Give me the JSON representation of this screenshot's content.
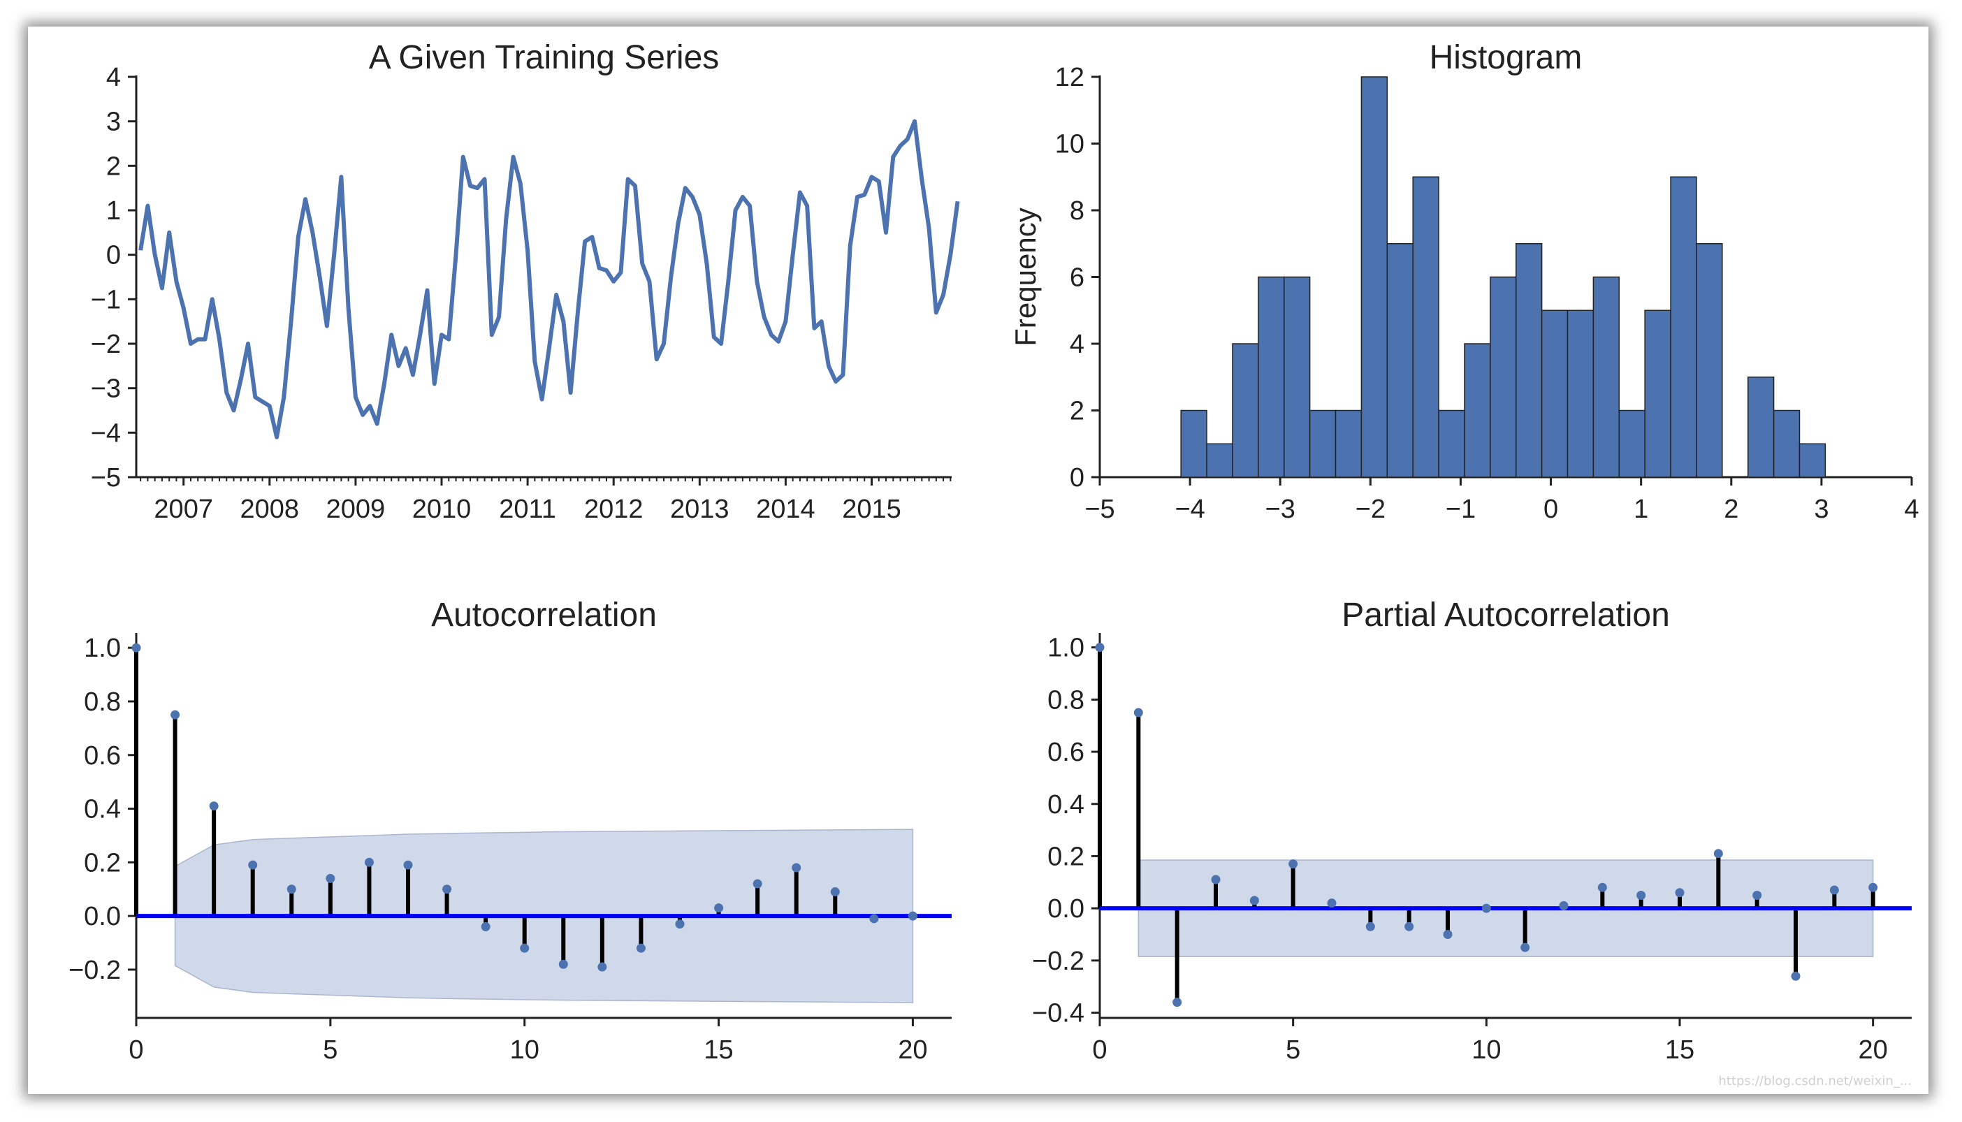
{
  "watermark": "https://blog.csdn.net/weixin_...",
  "chart_data": [
    {
      "type": "line",
      "title": "A Given Training Series",
      "xlabel": "",
      "ylabel": "",
      "xlim": [
        2006.45,
        2015.93
      ],
      "ylim": [
        -5,
        4
      ],
      "yticks": [
        4,
        3,
        2,
        1,
        0,
        -1,
        -2,
        -3,
        -4,
        -5
      ],
      "yticklabels": [
        "4",
        "3",
        "2",
        "1",
        "0",
        "−1",
        "−2",
        "−3",
        "−4",
        "−5"
      ],
      "xticks": [
        2007,
        2008,
        2009,
        2010,
        2011,
        2012,
        2013,
        2014,
        2015
      ],
      "xticklabels": [
        "2007",
        "2008",
        "2009",
        "2010",
        "2011",
        "2012",
        "2013",
        "2014",
        "2015"
      ],
      "color": "#4c72b0",
      "start": 2006.5,
      "step": 0.08333,
      "values": [
        0.1,
        1.1,
        0.0,
        -0.75,
        0.5,
        -0.6,
        -1.2,
        -2.0,
        -1.9,
        -1.9,
        -1.0,
        -1.9,
        -3.1,
        -3.5,
        -2.8,
        -2.0,
        -3.2,
        -3.3,
        -3.4,
        -4.1,
        -3.2,
        -1.5,
        0.4,
        1.25,
        0.5,
        -0.5,
        -1.6,
        0.0,
        1.75,
        -1.2,
        -3.2,
        -3.6,
        -3.4,
        -3.8,
        -2.9,
        -1.8,
        -2.5,
        -2.1,
        -2.7,
        -1.8,
        -0.8,
        -2.9,
        -1.8,
        -1.9,
        0.0,
        2.2,
        1.55,
        1.5,
        1.7,
        -1.8,
        -1.4,
        0.8,
        2.2,
        1.6,
        0.1,
        -2.4,
        -3.25,
        -2.1,
        -0.9,
        -1.5,
        -3.1,
        -1.3,
        0.3,
        0.4,
        -0.3,
        -0.35,
        -0.6,
        -0.4,
        1.7,
        1.55,
        -0.2,
        -0.6,
        -2.35,
        -2.0,
        -0.5,
        0.7,
        1.5,
        1.3,
        0.9,
        -0.2,
        -1.85,
        -2.0,
        -0.6,
        1.0,
        1.3,
        1.1,
        -0.6,
        -1.4,
        -1.8,
        -1.95,
        -1.5,
        0.0,
        1.4,
        1.1,
        -1.65,
        -1.5,
        -2.5,
        -2.85,
        -2.7,
        0.2,
        1.3,
        1.35,
        1.75,
        1.65,
        0.5,
        2.2,
        2.45,
        2.6,
        3.0,
        1.7,
        0.6,
        -1.3,
        -0.9,
        0.0,
        1.2
      ]
    },
    {
      "type": "bar",
      "title": "Histogram",
      "xlabel": "",
      "ylabel": "Frequency",
      "xlim": [
        -5,
        4
      ],
      "ylim": [
        0,
        12
      ],
      "yticks": [
        0,
        2,
        4,
        6,
        8,
        10,
        12
      ],
      "yticklabels": [
        "0",
        "2",
        "4",
        "6",
        "8",
        "10",
        "12"
      ],
      "xticks": [
        -5,
        -4,
        -3,
        -2,
        -1,
        0,
        1,
        2,
        3,
        4
      ],
      "xticklabels": [
        "−5",
        "−4",
        "−3",
        "−2",
        "−1",
        "0",
        "1",
        "2",
        "3",
        "4"
      ],
      "color": "#4c72b0",
      "bin_start": -4.1,
      "bin_width": 0.2857,
      "values": [
        2,
        1,
        4,
        6,
        6,
        2,
        2,
        12,
        7,
        9,
        2,
        4,
        6,
        7,
        5,
        5,
        6,
        2,
        5,
        9,
        7,
        0,
        3,
        2,
        1
      ]
    },
    {
      "type": "stem",
      "title": "Autocorrelation",
      "xlabel": "",
      "ylabel": "",
      "xlim": [
        0,
        21
      ],
      "ylim": [
        -0.38,
        1.05
      ],
      "yticks": [
        1.0,
        0.8,
        0.6,
        0.4,
        0.2,
        0.0,
        -0.2
      ],
      "yticklabels": [
        "1.0",
        "0.8",
        "0.6",
        "0.4",
        "0.2",
        "0.0",
        "−0.2"
      ],
      "xticks": [
        0,
        5,
        10,
        15,
        20
      ],
      "xticklabels": [
        "0",
        "5",
        "10",
        "15",
        "20"
      ],
      "lags": [
        0,
        1,
        2,
        3,
        4,
        5,
        6,
        7,
        8,
        9,
        10,
        11,
        12,
        13,
        14,
        15,
        16,
        17,
        18,
        19,
        20
      ],
      "values": [
        1.0,
        0.75,
        0.41,
        0.19,
        0.1,
        0.14,
        0.2,
        0.19,
        0.1,
        -0.04,
        -0.12,
        -0.18,
        -0.19,
        -0.12,
        -0.03,
        0.03,
        0.12,
        0.18,
        0.09,
        -0.01,
        0.0
      ],
      "conf_band": [
        0.0,
        0.185,
        0.265,
        0.285,
        0.29,
        0.295,
        0.3,
        0.305,
        0.308,
        0.31,
        0.312,
        0.314,
        0.315,
        0.316,
        0.317,
        0.318,
        0.319,
        0.32,
        0.321,
        0.322,
        0.323
      ],
      "band_color": "#d0d9ea",
      "stem_color": "#000000",
      "marker_color": "#4c72b0",
      "zero_line_color": "#0000ff"
    },
    {
      "type": "stem",
      "title": "Partial Autocorrelation",
      "xlabel": "",
      "ylabel": "",
      "xlim": [
        0,
        21
      ],
      "ylim": [
        -0.42,
        1.05
      ],
      "yticks": [
        1.0,
        0.8,
        0.6,
        0.4,
        0.2,
        0.0,
        -0.2,
        -0.4
      ],
      "yticklabels": [
        "1.0",
        "0.8",
        "0.6",
        "0.4",
        "0.2",
        "0.0",
        "−0.2",
        "−0.4"
      ],
      "xticks": [
        0,
        5,
        10,
        15,
        20
      ],
      "xticklabels": [
        "0",
        "5",
        "10",
        "15",
        "20"
      ],
      "lags": [
        0,
        1,
        2,
        3,
        4,
        5,
        6,
        7,
        8,
        9,
        10,
        11,
        12,
        13,
        14,
        15,
        16,
        17,
        18,
        19,
        20
      ],
      "values": [
        1.0,
        0.75,
        -0.36,
        0.11,
        0.03,
        0.17,
        0.02,
        -0.07,
        -0.07,
        -0.1,
        0.0,
        -0.15,
        0.01,
        0.08,
        0.05,
        0.06,
        0.21,
        0.05,
        -0.26,
        0.07,
        0.08
      ],
      "conf_band": [
        0.0,
        0.185,
        0.185,
        0.185,
        0.185,
        0.185,
        0.185,
        0.185,
        0.185,
        0.185,
        0.185,
        0.185,
        0.185,
        0.185,
        0.185,
        0.185,
        0.185,
        0.185,
        0.185,
        0.185,
        0.185
      ],
      "band_color": "#d0d9ea",
      "stem_color": "#000000",
      "marker_color": "#4c72b0",
      "zero_line_color": "#0000ff"
    }
  ]
}
